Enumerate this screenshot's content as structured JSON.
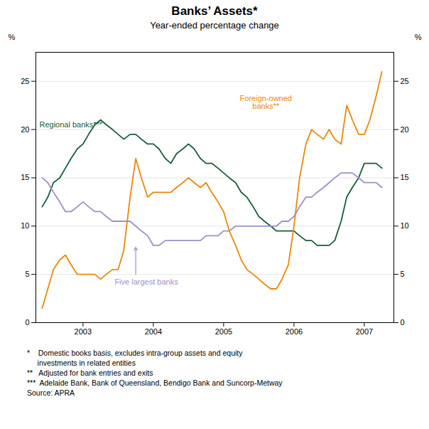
{
  "chart_data": {
    "type": "line",
    "title": "Banks’ Assets*",
    "subtitle": "Year-ended percentage change",
    "x": [
      2002.42,
      2002.5,
      2002.58,
      2002.67,
      2002.75,
      2002.83,
      2002.92,
      2003.0,
      2003.08,
      2003.17,
      2003.25,
      2003.33,
      2003.42,
      2003.5,
      2003.58,
      2003.67,
      2003.75,
      2003.83,
      2003.92,
      2004.0,
      2004.08,
      2004.17,
      2004.25,
      2004.33,
      2004.42,
      2004.5,
      2004.58,
      2004.67,
      2004.75,
      2004.83,
      2004.92,
      2005.0,
      2005.08,
      2005.17,
      2005.25,
      2005.33,
      2005.42,
      2005.5,
      2005.58,
      2005.67,
      2005.75,
      2005.83,
      2005.92,
      2006.0,
      2006.08,
      2006.17,
      2006.25,
      2006.33,
      2006.42,
      2006.5,
      2006.58,
      2006.67,
      2006.75,
      2006.83,
      2006.92,
      2007.0,
      2007.08,
      2007.17,
      2007.25
    ],
    "series": [
      {
        "color": "#1a5c38",
        "values": [
          12.0,
          13.0,
          14.5,
          15.0,
          16.0,
          17.0,
          18.0,
          18.5,
          19.5,
          20.5,
          21.0,
          20.5,
          20.0,
          19.5,
          19.0,
          19.5,
          19.5,
          19.0,
          18.5,
          18.5,
          18.0,
          17.0,
          16.5,
          17.5,
          18.0,
          18.5,
          18.0,
          17.0,
          16.5,
          16.5,
          16.0,
          15.5,
          15.0,
          14.5,
          13.5,
          13.0,
          12.0,
          11.0,
          10.5,
          10.0,
          9.5,
          9.5,
          9.5,
          9.5,
          9.0,
          8.5,
          8.5,
          8.0,
          8.0,
          8.0,
          8.5,
          10.5,
          13.0,
          14.0,
          15.0,
          16.5,
          16.5,
          16.5,
          16.0
        ]
      },
      {
        "color": "#9b91c8",
        "values": [
          15.0,
          14.5,
          13.5,
          12.5,
          11.5,
          11.5,
          12.0,
          12.5,
          12.0,
          11.5,
          11.5,
          11.0,
          10.5,
          10.5,
          10.5,
          10.5,
          10.0,
          9.5,
          9.0,
          8.0,
          8.0,
          8.5,
          8.5,
          8.5,
          8.5,
          8.5,
          8.5,
          8.5,
          9.0,
          9.0,
          9.0,
          9.5,
          9.5,
          10.0,
          10.0,
          10.0,
          10.0,
          10.0,
          10.0,
          10.0,
          10.0,
          10.5,
          10.5,
          11.0,
          12.0,
          13.0,
          13.0,
          13.5,
          14.0,
          14.5,
          15.0,
          15.5,
          15.5,
          15.5,
          15.0,
          14.5,
          14.5,
          14.5,
          14.0
        ]
      },
      {
        "color": "#e8880a",
        "values": [
          1.5,
          3.5,
          5.5,
          6.5,
          7.0,
          6.0,
          5.0,
          5.0,
          5.0,
          5.0,
          4.5,
          5.0,
          5.5,
          5.5,
          7.5,
          13.0,
          17.0,
          15.0,
          13.0,
          13.5,
          13.5,
          13.5,
          13.5,
          14.0,
          14.5,
          15.0,
          14.5,
          14.0,
          14.5,
          13.5,
          12.5,
          11.5,
          9.5,
          8.0,
          6.5,
          5.5,
          5.0,
          4.5,
          4.0,
          3.5,
          3.5,
          4.5,
          6.0,
          10.0,
          15.0,
          18.5,
          20.0,
          19.5,
          19.0,
          20.0,
          19.0,
          18.5,
          22.5,
          21.0,
          19.5,
          19.5,
          21.0,
          23.5,
          26.0
        ]
      }
    ],
    "xlim": [
      2002.33,
      2007.42
    ],
    "xticks": [
      2003,
      2004,
      2005,
      2006,
      2007
    ],
    "ylim": [
      0,
      28
    ],
    "yticks": [
      0,
      5,
      10,
      15,
      20,
      25
    ],
    "ylabel": "%",
    "y2label": "%",
    "y2lim": [
      0,
      28
    ],
    "y2ticks": [
      0,
      5,
      10,
      15,
      20,
      25
    ],
    "grid": true,
    "legend": false,
    "annotations": [
      {
        "text": "Regional banks***",
        "x": 2002.38,
        "y": 20.5,
        "color": "#1a5c38",
        "align": "left"
      },
      {
        "text": "Foreign-owned\nbanks**",
        "x": 2005.6,
        "y": 22.8,
        "color": "#e8880a",
        "align": "center"
      },
      {
        "text": "Five largest banks",
        "x": 2003.45,
        "y": 4.2,
        "color": "#9b91c8",
        "align": "left",
        "arrow_from": [
          2003.75,
          5.0
        ],
        "arrow_to": [
          2003.75,
          7.8
        ]
      }
    ],
    "footnotes": [
      "*    Domestic books basis, excludes intra-group assets and equity",
      "     investments in related entities",
      "**   Adjusted for bank entries and exits",
      "***  Adelaide Bank, Bank of Queensland, Bendigo Bank and Suncorp-Metway",
      "Source: APRA"
    ]
  }
}
